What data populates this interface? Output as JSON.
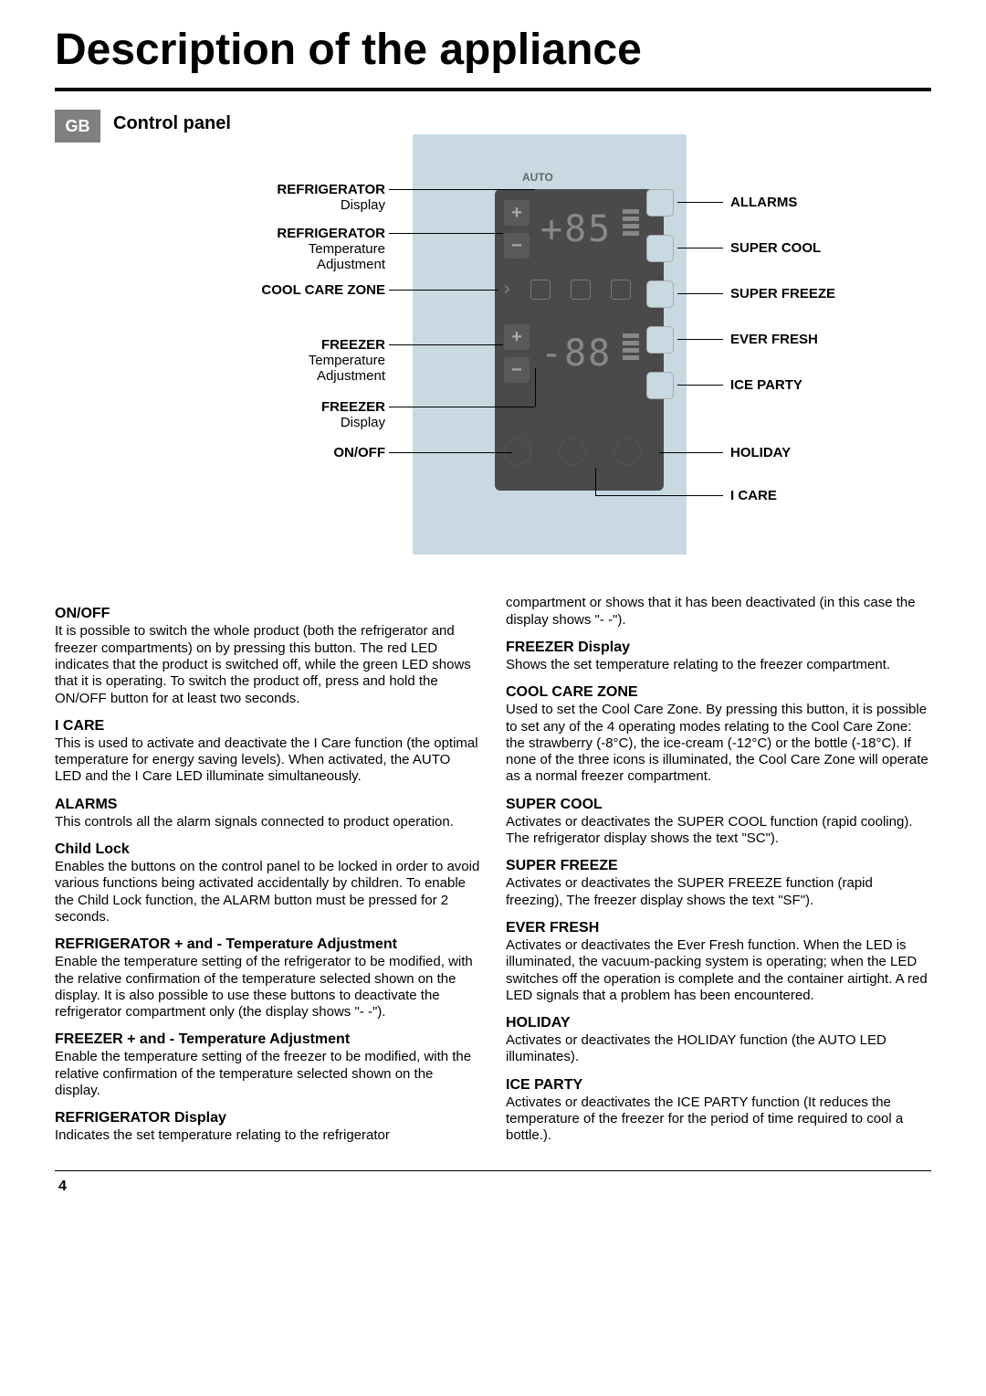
{
  "page": {
    "title": "Description of the appliance",
    "language_badge": "GB",
    "subtitle": "Control panel",
    "page_number": "4"
  },
  "diagram": {
    "auto_label": "AUTO",
    "left_labels": [
      {
        "name": "REFRIGERATOR",
        "sub": "Display"
      },
      {
        "name": "REFRIGERATOR",
        "sub": "Temperature\nAdjustment"
      },
      {
        "name": "COOL CARE ZONE",
        "sub": ""
      },
      {
        "name": "FREEZER",
        "sub": "Temperature\nAdjustment"
      },
      {
        "name": "FREEZER",
        "sub": "Display"
      },
      {
        "name": "ON/OFF",
        "sub": ""
      }
    ],
    "right_labels": [
      "ALLARMS",
      "SUPER COOL",
      "SUPER FREEZE",
      "EVER FRESH",
      "ICE PARTY",
      "HOLIDAY",
      "I CARE"
    ],
    "display_fridge": "+85",
    "display_freezer": "-88",
    "colors": {
      "panel_bg": "#c8d9e2",
      "inner_bg": "#4a4a4a",
      "line": "#000000"
    }
  },
  "sections_left": [
    {
      "h": "ON/OFF",
      "p": "It is possible to switch the whole product (both the refrigerator and freezer compartments) on by pressing this button. The red LED indicates that the product is switched off, while the green LED shows that it is operating. To switch the product off, press and hold the ON/OFF button for at least two seconds."
    },
    {
      "h": "I CARE",
      "p": "This is used to activate and deactivate the I Care function (the optimal temperature for energy saving levels). When activated, the AUTO LED and the I Care LED illuminate simultaneously."
    },
    {
      "h": "ALARMS",
      "p": "This controls all the alarm signals connected to product operation."
    },
    {
      "h": "Child Lock",
      "p": "Enables the buttons on the control panel to be locked in order to avoid various functions being activated accidentally by children. To enable the Child Lock function, the ALARM button must be pressed for 2 seconds."
    },
    {
      "h": "REFRIGERATOR + and - Temperature Adjustment",
      "p": "Enable the temperature setting of the refrigerator to be modified, with the relative confirmation of the temperature selected shown on the display. It is also possible to use these buttons to deactivate the refrigerator compartment only (the display shows \"- -\")."
    },
    {
      "h": "FREEZER + and - Temperature Adjustment",
      "p": "Enable the temperature setting of the freezer to be modified, with the relative confirmation of the temperature selected shown on the display."
    },
    {
      "h": "REFRIGERATOR Display",
      "p": "Indicates the set temperature relating to the refrigerator"
    }
  ],
  "sections_right": [
    {
      "h": "",
      "p": "compartment or shows that it has been deactivated (in this case the display shows \"- -\")."
    },
    {
      "h": "FREEZER Display",
      "p": "Shows the set temperature relating to the freezer compartment."
    },
    {
      "h": "COOL CARE ZONE",
      "p": "Used to set the Cool Care Zone. By pressing this button, it is possible to set any of the 4 operating modes relating to the Cool Care Zone: the strawberry (-8°C), the ice-cream (-12°C) or the bottle (-18°C). If none of the three icons is illuminated, the Cool Care Zone will operate as a normal freezer compartment."
    },
    {
      "h": "SUPER COOL",
      "p": "Activates or deactivates the SUPER COOL function (rapid cooling). The refrigerator display shows the text \"SC\")."
    },
    {
      "h": "SUPER FREEZE",
      "p": "Activates or deactivates the SUPER FREEZE function (rapid freezing), The freezer display shows the text \"SF\")."
    },
    {
      "h": "EVER FRESH",
      "p": "Activates or deactivates the Ever Fresh function. When the LED is illuminated, the vacuum-packing system is operating; when the LED switches off the operation is complete and the container airtight. A red LED signals that a problem has been encountered."
    },
    {
      "h": "HOLIDAY",
      "p": "Activates or deactivates the HOLIDAY function (the AUTO LED illuminates)."
    },
    {
      "h": "ICE PARTY",
      "p": "Activates or deactivates the ICE PARTY function (It reduces the temperature of the freezer for the period of time required to cool a bottle.)."
    }
  ]
}
